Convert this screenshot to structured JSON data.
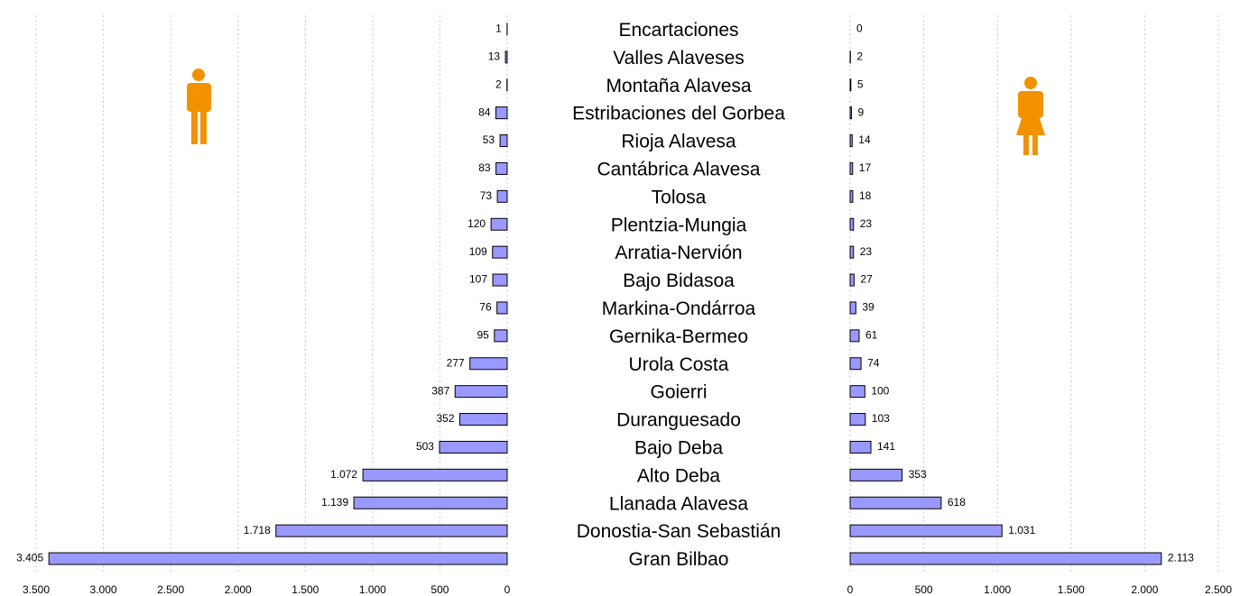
{
  "chart_data": [
    {
      "type": "bar",
      "orientation": "horizontal",
      "color": "#9999ff",
      "grid": true,
      "categories": [
        "Encartaciones",
        "Valles Alaveses",
        "Montaña Alavesa",
        "Estribaciones del Gorbea",
        "Rioja Alavesa",
        "Cantábrica Alavesa",
        "Tolosa",
        "Plentzia-Mungia",
        "Arratia-Nervión",
        "Bajo Bidasoa",
        "Markina-Ondárroa",
        "Gernika-Bermeo",
        "Urola Costa",
        "Goierri",
        "Duranguesado",
        "Bajo Deba",
        "Alto Deba",
        "Llanada Alavesa",
        "Donostia-San Sebastián",
        "Gran Bilbao"
      ],
      "values": [
        1,
        13,
        2,
        84,
        53,
        83,
        73,
        120,
        109,
        107,
        76,
        95,
        277,
        387,
        352,
        503,
        1072,
        1139,
        1718,
        3405
      ],
      "value_labels": [
        "1",
        "13",
        "2",
        "84",
        "53",
        "83",
        "73",
        "120",
        "109",
        "107",
        "76",
        "95",
        "277",
        "387",
        "352",
        "503",
        "1.072",
        "1.139",
        "1.718",
        "3.405"
      ],
      "xlim": [
        3500,
        0
      ],
      "xticks": [
        {
          "value": 3500,
          "label": "3.500"
        },
        {
          "value": 3000,
          "label": "3.000"
        },
        {
          "value": 2500,
          "label": "2.500"
        },
        {
          "value": 2000,
          "label": "2.000"
        },
        {
          "value": 1500,
          "label": "1.500"
        },
        {
          "value": 1000,
          "label": "1.000"
        },
        500,
        0
      ]
    },
    {
      "type": "bar",
      "orientation": "horizontal",
      "color": "#9999ff",
      "grid": true,
      "values": [
        0,
        2,
        5,
        9,
        14,
        17,
        18,
        23,
        23,
        27,
        39,
        61,
        74,
        100,
        103,
        141,
        353,
        618,
        1031,
        2113
      ],
      "value_labels": [
        "0",
        "2",
        "5",
        "9",
        "14",
        "17",
        "18",
        "23",
        "23",
        "27",
        "39",
        "61",
        "74",
        "100",
        "103",
        "141",
        "353",
        "618",
        "1.031",
        "2.113"
      ],
      "xlim": [
        0,
        2500
      ],
      "xticks": [
        0,
        500,
        {
          "value": 1000,
          "label": "1.000"
        },
        {
          "value": 1500,
          "label": "1.500"
        },
        {
          "value": 2000,
          "label": "2.000"
        },
        {
          "value": 2500,
          "label": "2.500"
        }
      ]
    }
  ]
}
